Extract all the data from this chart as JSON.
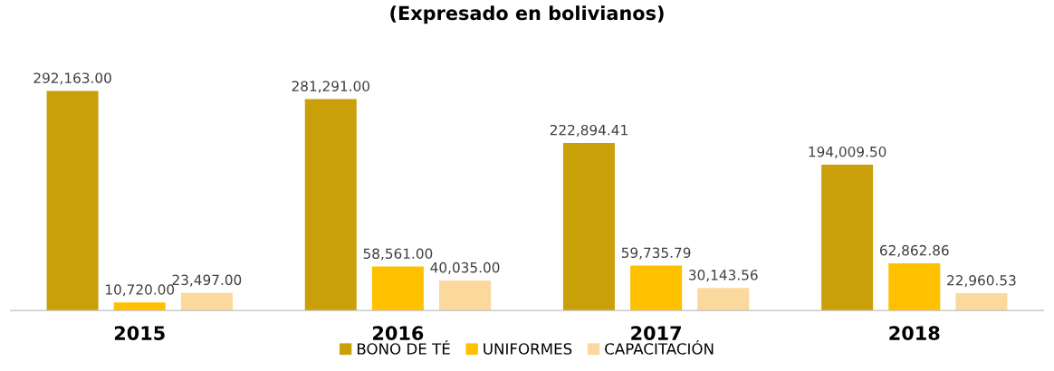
{
  "chart_data": {
    "type": "bar",
    "title": "(Expresado en bolivianos)",
    "categories": [
      "2015",
      "2016",
      "2017",
      "2018"
    ],
    "series": [
      {
        "name": "BONO DE TÉ",
        "color": "#c9a00a",
        "values": [
          292163.0,
          281291.0,
          222894.41,
          194009.5
        ],
        "value_labels": [
          "292,163.00",
          "281,291.00",
          "222,894.41",
          "194,009.50"
        ]
      },
      {
        "name": "UNIFORMES",
        "color": "#ffc000",
        "values": [
          10720.0,
          58561.0,
          59735.79,
          62862.86
        ],
        "value_labels": [
          "10,720.00",
          "58,561.00",
          "59,735.79",
          "62,862.86"
        ]
      },
      {
        "name": "CAPACITACIÓN",
        "color": "#fbd89c",
        "values": [
          23497.0,
          40035.0,
          30143.56,
          22960.53
        ],
        "value_labels": [
          "23,497.00",
          "40,035.00",
          "30,143.56",
          "22,960.53"
        ]
      }
    ],
    "legend": "bottom",
    "grid": false
  }
}
